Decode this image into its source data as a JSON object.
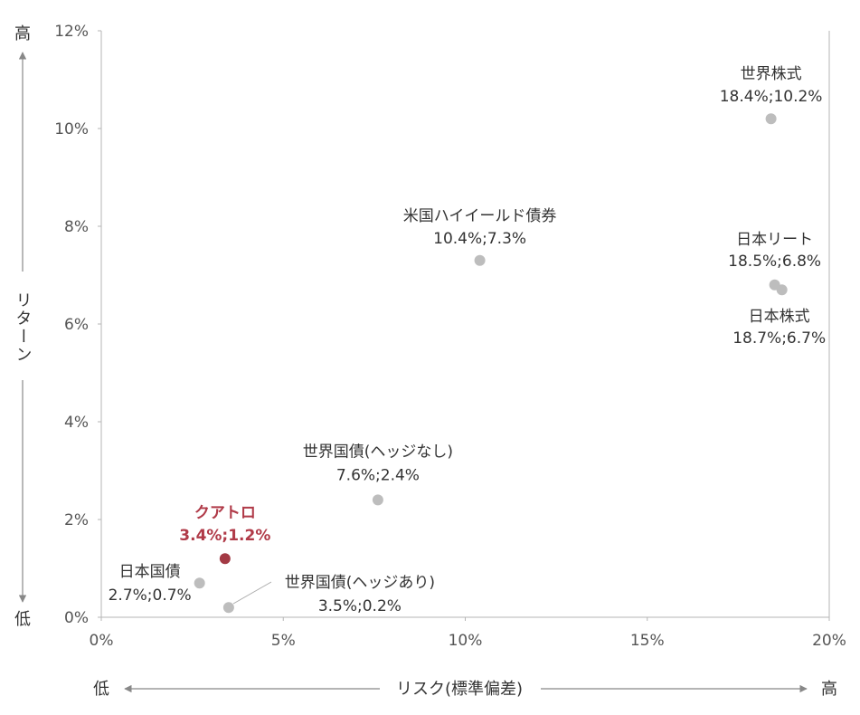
{
  "chart_data": {
    "type": "scatter",
    "xlim": [
      0,
      20
    ],
    "ylim": [
      0,
      12
    ],
    "x_ticks": [
      "0%",
      "5%",
      "10%",
      "15%",
      "20%"
    ],
    "y_ticks": [
      "0%",
      "2%",
      "4%",
      "6%",
      "8%",
      "10%",
      "12%"
    ],
    "xlabel": "リスク(標準偏差)",
    "ylabel": "リターン",
    "x_low": "低",
    "x_high": "高",
    "y_low": "低",
    "y_high": "高",
    "colors": {
      "point": "#bdbdbd",
      "highlight": "#a33a44",
      "axis": "#9a9a9a"
    },
    "points": [
      {
        "name": "世界株式",
        "value_label": "18.4%;10.2%",
        "x": 18.4,
        "y": 10.2,
        "highlight": false
      },
      {
        "name": "米国ハイイールド債券",
        "value_label": "10.4%;7.3%",
        "x": 10.4,
        "y": 7.3,
        "highlight": false
      },
      {
        "name": "日本リート",
        "value_label": "18.5%;6.8%",
        "x": 18.5,
        "y": 6.8,
        "highlight": false
      },
      {
        "name": "日本株式",
        "value_label": "18.7%;6.7%",
        "x": 18.7,
        "y": 6.7,
        "highlight": false
      },
      {
        "name": "世界国債(ヘッジなし)",
        "value_label": "7.6%;2.4%",
        "x": 7.6,
        "y": 2.4,
        "highlight": false
      },
      {
        "name": "クアトロ",
        "value_label": "3.4%;1.2%",
        "x": 3.4,
        "y": 1.2,
        "highlight": true
      },
      {
        "name": "日本国債",
        "value_label": "2.7%;0.7%",
        "x": 2.7,
        "y": 0.7,
        "highlight": false
      },
      {
        "name": "世界国債(ヘッジあり)",
        "value_label": "3.5%;0.2%",
        "x": 3.5,
        "y": 0.2,
        "highlight": false
      }
    ]
  }
}
